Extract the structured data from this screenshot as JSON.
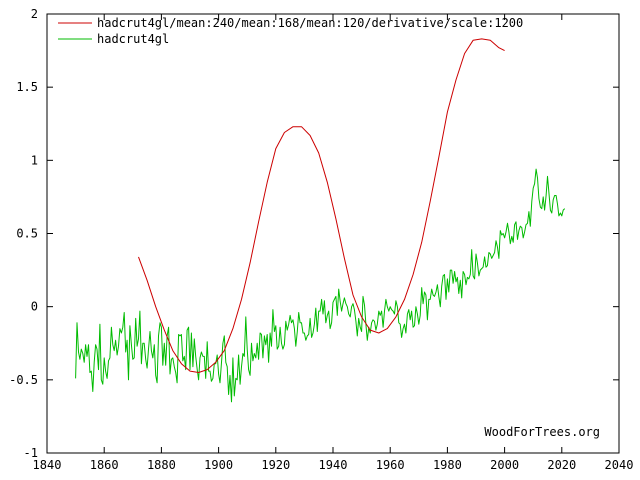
{
  "chart_data": {
    "type": "line",
    "title": "",
    "xlabel": "",
    "ylabel": "",
    "xlim": [
      1840,
      2040
    ],
    "ylim": [
      -1,
      2
    ],
    "x_ticks": [
      1840,
      1860,
      1880,
      1900,
      1920,
      1940,
      1960,
      1980,
      2000,
      2020,
      2040
    ],
    "y_ticks": [
      -1,
      -0.5,
      0,
      0.5,
      1,
      1.5,
      2
    ],
    "x_tick_labels": [
      "1840",
      "1860",
      "1880",
      "1900",
      "1920",
      "1940",
      "1960",
      "1980",
      "2000",
      "2020",
      "2040"
    ],
    "y_tick_labels": [
      "-1",
      "-0.5",
      "0",
      "0.5",
      "1",
      "1.5",
      "2"
    ],
    "grid": false,
    "legend_position": "top-left",
    "credit": "WoodForTrees.org",
    "series": [
      {
        "name": "hadcrut4gl/mean:240/mean:168/mean:120/derivative/scale:1200",
        "color": "#cc0000",
        "x": [
          1872,
          1875,
          1878,
          1881,
          1884,
          1887,
          1890,
          1893,
          1896,
          1899,
          1902,
          1905,
          1908,
          1911,
          1914,
          1917,
          1920,
          1923,
          1926,
          1929,
          1932,
          1935,
          1938,
          1941,
          1944,
          1947,
          1950,
          1953,
          1956,
          1959,
          1962,
          1965,
          1968,
          1971,
          1974,
          1977,
          1980,
          1983,
          1986,
          1989,
          1992,
          1995,
          1998,
          2000
        ],
        "y": [
          0.34,
          0.18,
          0.0,
          -0.16,
          -0.3,
          -0.39,
          -0.44,
          -0.45,
          -0.43,
          -0.38,
          -0.3,
          -0.15,
          0.05,
          0.3,
          0.58,
          0.85,
          1.08,
          1.19,
          1.23,
          1.23,
          1.17,
          1.05,
          0.85,
          0.6,
          0.33,
          0.08,
          -0.07,
          -0.16,
          -0.18,
          -0.15,
          -0.07,
          0.05,
          0.22,
          0.44,
          0.72,
          1.02,
          1.33,
          1.55,
          1.73,
          1.82,
          1.83,
          1.82,
          1.77,
          1.75
        ]
      },
      {
        "name": "hadcrut4gl",
        "color": "#00bb00",
        "x_start": 1850,
        "x_end": 2022,
        "x_step": 0.5,
        "y": [
          -0.49,
          -0.11,
          -0.31,
          -0.36,
          -0.29,
          -0.32,
          -0.38,
          -0.26,
          -0.34,
          -0.26,
          -0.45,
          -0.44,
          -0.58,
          -0.38,
          -0.26,
          -0.29,
          -0.43,
          -0.12,
          -0.5,
          -0.53,
          -0.35,
          -0.44,
          -0.49,
          -0.37,
          -0.35,
          -0.14,
          -0.26,
          -0.3,
          -0.23,
          -0.33,
          -0.27,
          -0.15,
          -0.18,
          -0.14,
          -0.04,
          -0.31,
          -0.23,
          -0.5,
          -0.13,
          -0.26,
          -0.36,
          -0.35,
          -0.08,
          -0.27,
          -0.22,
          -0.03,
          -0.39,
          -0.25,
          -0.25,
          -0.36,
          -0.42,
          -0.29,
          -0.17,
          -0.3,
          -0.35,
          -0.26,
          -0.47,
          -0.52,
          -0.2,
          -0.11,
          -0.14,
          -0.4,
          -0.25,
          -0.4,
          -0.2,
          -0.14,
          -0.46,
          -0.36,
          -0.35,
          -0.41,
          -0.45,
          -0.52,
          -0.19,
          -0.2,
          -0.19,
          -0.37,
          -0.34,
          -0.43,
          -0.16,
          -0.14,
          -0.43,
          -0.18,
          -0.41,
          -0.22,
          -0.34,
          -0.43,
          -0.5,
          -0.35,
          -0.31,
          -0.34,
          -0.34,
          -0.49,
          -0.24,
          -0.44,
          -0.44,
          -0.51,
          -0.49,
          -0.39,
          -0.39,
          -0.33,
          -0.46,
          -0.52,
          -0.38,
          -0.25,
          -0.2,
          -0.38,
          -0.41,
          -0.6,
          -0.47,
          -0.65,
          -0.35,
          -0.61,
          -0.49,
          -0.5,
          -0.33,
          -0.53,
          -0.41,
          -0.32,
          -0.34,
          -0.07,
          -0.29,
          -0.43,
          -0.47,
          -0.25,
          -0.37,
          -0.32,
          -0.35,
          -0.25,
          -0.36,
          -0.18,
          -0.19,
          -0.35,
          -0.2,
          -0.26,
          -0.19,
          -0.38,
          -0.18,
          -0.27,
          -0.02,
          -0.17,
          -0.13,
          -0.29,
          -0.27,
          -0.14,
          -0.25,
          -0.29,
          -0.26,
          -0.1,
          -0.16,
          -0.12,
          -0.06,
          -0.11,
          -0.09,
          -0.15,
          -0.27,
          -0.17,
          -0.04,
          -0.11,
          -0.11,
          -0.18,
          -0.18,
          -0.23,
          -0.2,
          -0.19,
          -0.08,
          -0.21,
          -0.18,
          -0.12,
          -0.01,
          -0.17,
          -0.03,
          -0.03,
          0.05,
          -0.05,
          0.04,
          -0.11,
          -0.06,
          -0.03,
          -0.15,
          -0.11,
          0.03,
          0.05,
          0.07,
          -0.06,
          0.12,
          0.04,
          -0.03,
          0.02,
          0.06,
          0.02,
          0.0,
          -0.05,
          -0.07,
          0.0,
          0.02,
          -0.02,
          -0.1,
          -0.2,
          -0.08,
          -0.14,
          -0.17,
          0.07,
          0.01,
          -0.12,
          -0.23,
          -0.14,
          -0.18,
          -0.11,
          -0.09,
          -0.1,
          -0.16,
          -0.12,
          -0.03,
          -0.06,
          -0.03,
          -0.14,
          -0.03,
          0.05,
          0.0,
          -0.03,
          0.0,
          -0.02,
          -0.03,
          -0.05,
          0.04,
          0.0,
          -0.11,
          -0.12,
          -0.21,
          -0.15,
          -0.12,
          -0.18,
          -0.05,
          -0.02,
          -0.09,
          -0.03,
          -0.14,
          -0.13,
          0.0,
          -0.05,
          -0.12,
          -0.06,
          0.13,
          0.02,
          0.1,
          0.08,
          -0.09,
          0.05,
          0.05,
          0.12,
          0.08,
          0.07,
          0.1,
          0.15,
          0.07,
          0.0,
          0.14,
          0.21,
          0.22,
          0.05,
          0.19,
          0.1,
          0.25,
          0.25,
          0.16,
          0.24,
          0.17,
          0.2,
          0.09,
          0.18,
          0.06,
          0.24,
          0.22,
          0.15,
          0.2,
          0.19,
          0.22,
          0.39,
          0.21,
          0.19,
          0.36,
          0.3,
          0.21,
          0.25,
          0.26,
          0.27,
          0.34,
          0.27,
          0.28,
          0.37,
          0.36,
          0.33,
          0.35,
          0.37,
          0.45,
          0.41,
          0.33,
          0.52,
          0.49,
          0.5,
          0.47,
          0.51,
          0.57,
          0.51,
          0.43,
          0.48,
          0.44,
          0.56,
          0.58,
          0.46,
          0.52,
          0.55,
          0.54,
          0.47,
          0.51,
          0.56,
          0.57,
          0.65,
          0.55,
          0.72,
          0.81,
          0.84,
          0.94,
          0.88,
          0.74,
          0.68,
          0.67,
          0.75,
          0.66,
          0.76,
          0.89,
          0.78,
          0.66,
          0.64,
          0.73,
          0.76,
          0.76,
          0.7,
          0.62,
          0.64,
          0.62,
          0.66,
          0.67
        ]
      }
    ]
  }
}
